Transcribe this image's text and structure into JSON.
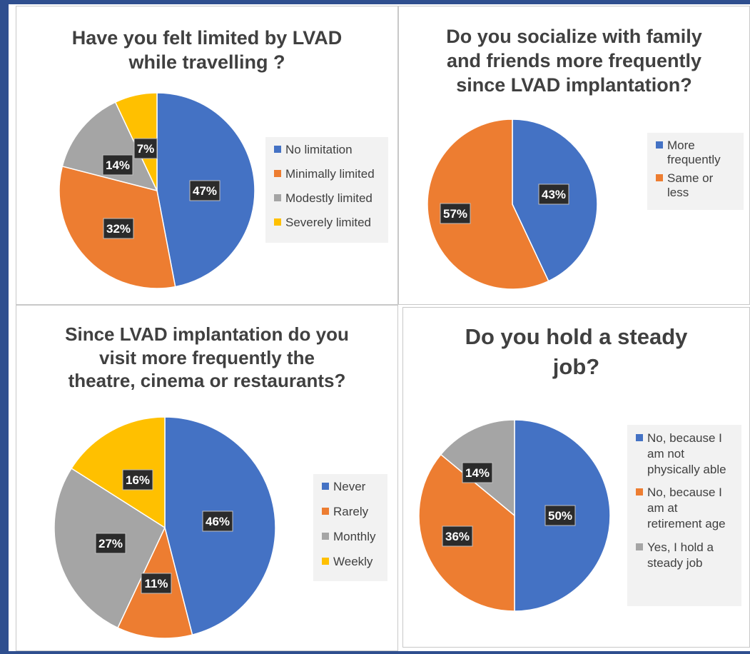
{
  "colors": {
    "blue": "#4472c4",
    "orange": "#ed7d31",
    "gray": "#a5a5a5",
    "yellow": "#ffc000"
  },
  "chart_data": [
    {
      "type": "pie",
      "title": "Have you felt limited by LVAD\nwhile travelling ?",
      "categories": [
        "No limitation",
        "Minimally limited",
        "Modestly limited",
        "Severely limited"
      ],
      "values": [
        47,
        32,
        14,
        7
      ],
      "labels": [
        "47%",
        "32%",
        "14%",
        "7%"
      ],
      "colors": [
        "#4472c4",
        "#ed7d31",
        "#a5a5a5",
        "#ffc000"
      ],
      "legend_position": "right"
    },
    {
      "type": "pie",
      "title": "Do you socialize with family\nand friends more frequently\nsince LVAD implantation?",
      "categories": [
        "More\nfrequently",
        "Same or less"
      ],
      "values": [
        43,
        57
      ],
      "labels": [
        "43%",
        "57%"
      ],
      "colors": [
        "#4472c4",
        "#ed7d31"
      ],
      "legend_position": "right"
    },
    {
      "type": "pie",
      "title": "Since LVAD implantation do you\nvisit more frequently the\ntheatre, cinema or restaurants?",
      "categories": [
        "Never",
        "Rarely",
        "Monthly",
        "Weekly"
      ],
      "values": [
        46,
        11,
        27,
        16
      ],
      "labels": [
        "46%",
        "11%",
        "27%",
        "16%"
      ],
      "colors": [
        "#4472c4",
        "#ed7d31",
        "#a5a5a5",
        "#ffc000"
      ],
      "legend_position": "right"
    },
    {
      "type": "pie",
      "title": "Do you hold a steady\njob?",
      "categories": [
        "No, because I\nam not\nphysically able",
        "No, because I\nam at\nretirement age",
        "Yes, I hold a\nsteady job"
      ],
      "values": [
        50,
        36,
        14
      ],
      "labels": [
        "50%",
        "36%",
        "14%"
      ],
      "colors": [
        "#4472c4",
        "#ed7d31",
        "#a5a5a5"
      ],
      "legend_position": "right"
    }
  ]
}
